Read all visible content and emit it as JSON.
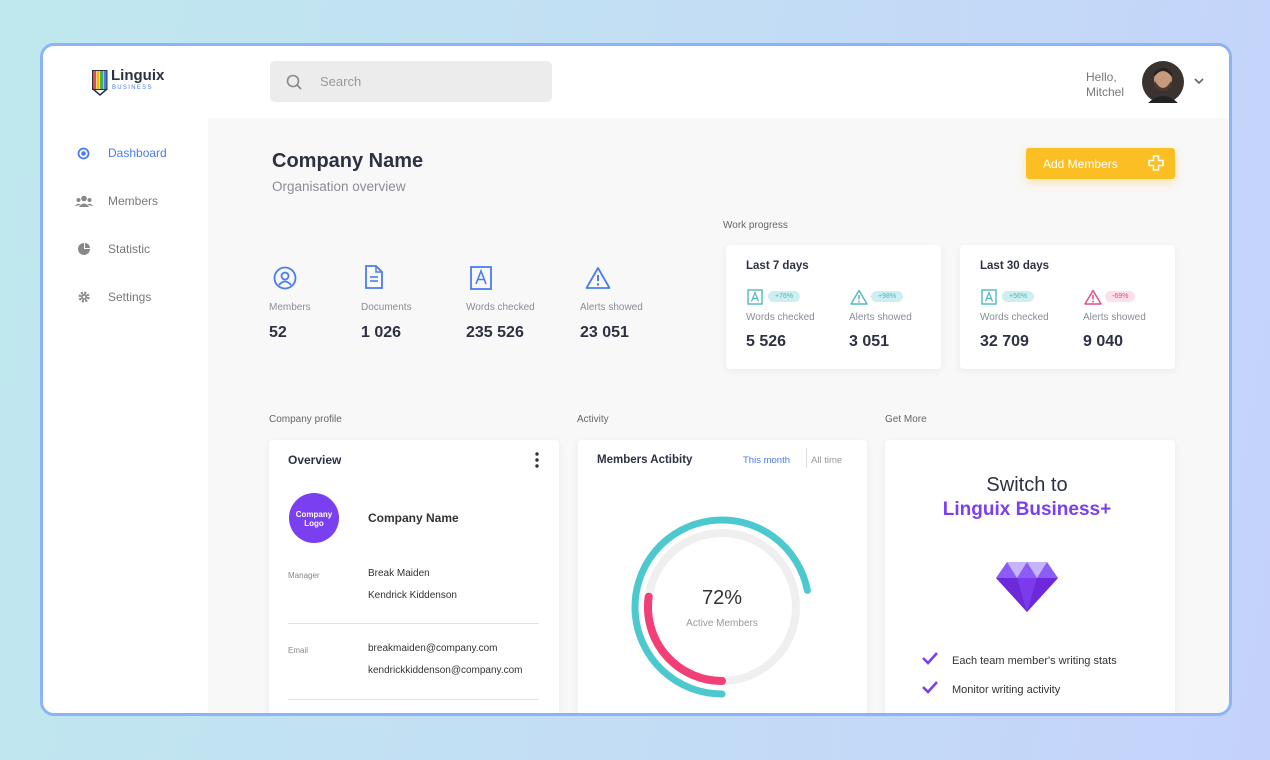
{
  "header": {
    "brand": "Linguix",
    "brand_sub": "BUSINESS",
    "search_placeholder": "Search",
    "greeting": "Hello,",
    "user_name": "Mitchel"
  },
  "sidebar": {
    "items": [
      "Dashboard",
      "Members",
      "Statistic",
      "Settings"
    ]
  },
  "page": {
    "title": "Company Name",
    "subtitle": "Organisation overview",
    "add_button": "Add Members"
  },
  "stats": [
    {
      "label": "Members",
      "value": "52"
    },
    {
      "label": "Documents",
      "value": "1 026"
    },
    {
      "label": "Words checked",
      "value": "235 526"
    },
    {
      "label": "Alerts showed",
      "value": "23 051"
    }
  ],
  "work_progress": {
    "title": "Work progress",
    "cards": [
      {
        "period": "Last 7 days",
        "metrics": [
          {
            "label": "Words checked",
            "change": "+76%",
            "value": "5 526"
          },
          {
            "label": "Alerts showed",
            "change": "+98%",
            "value": "3 051"
          }
        ]
      },
      {
        "period": "Last 30 days",
        "metrics": [
          {
            "label": "Words checked",
            "change": "+56%",
            "value": "32 709"
          },
          {
            "label": "Alerts showed",
            "change": "-69%",
            "value": "9 040"
          }
        ]
      }
    ]
  },
  "company_profile": {
    "section": "Company profile",
    "card_title": "Overview",
    "logo_text": "Company Logo",
    "company_name": "Company Name",
    "manager_label": "Manager",
    "managers": [
      "Break Maiden",
      "Kendrick Kiddenson"
    ],
    "email_label": "Email",
    "emails": [
      "breakmaiden@company.com",
      "kendrickkiddenson@company.com"
    ]
  },
  "activity": {
    "section": "Activity",
    "card_title": "Members Actibity",
    "tabs": [
      "This month",
      "All time"
    ],
    "percent": "72%",
    "caption": "Active Members"
  },
  "get_more": {
    "section": "Get More",
    "headline": "Switch to",
    "product": "Linguix Business+",
    "features": [
      "Each team member's writing stats",
      "Monitor writing activity"
    ]
  }
}
